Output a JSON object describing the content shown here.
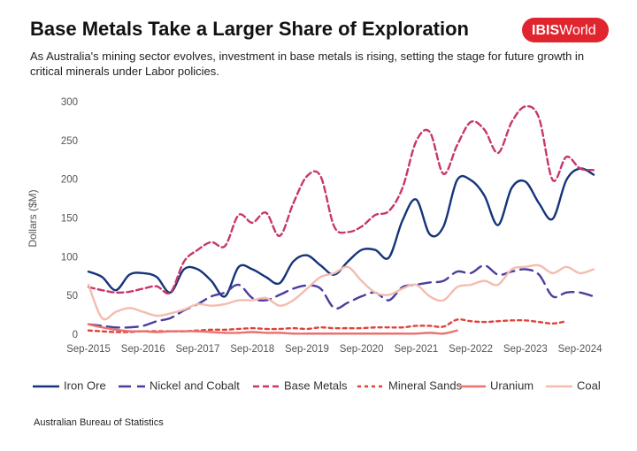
{
  "logo": {
    "bold": "IBIS",
    "regular": "World"
  },
  "chart_data": {
    "type": "line",
    "title": "Base Metals Take a Larger Share of Exploration",
    "subtitle": "As Australia's mining sector evolves, investment in base metals is rising, setting the stage for future growth in critical minerals under Labor policies.",
    "ylabel": "Dollars ($M)",
    "source": "Australian  Bureau of Statistics",
    "categories": [
      "Sep-2015",
      null,
      null,
      null,
      "Sep-2016",
      null,
      null,
      null,
      "Sep-2017",
      null,
      null,
      null,
      "Sep-2018",
      null,
      null,
      null,
      "Sep-2019",
      null,
      null,
      null,
      "Sep-2020",
      null,
      null,
      null,
      "Sep-2021",
      null,
      null,
      null,
      "Sep-2022",
      null,
      null,
      null,
      "Sep-2023",
      null,
      null,
      null,
      "Sep-2024",
      null
    ],
    "ylim": [
      0,
      300
    ],
    "yticks": [
      0,
      50,
      100,
      150,
      200,
      250,
      300
    ],
    "grid": false,
    "legend": "bottom",
    "series": [
      {
        "name": "Iron Ore",
        "color": "#15347a",
        "dash": "solid",
        "values": [
          82,
          75,
          58,
          78,
          80,
          75,
          55,
          85,
          85,
          70,
          50,
          88,
          85,
          75,
          67,
          95,
          103,
          90,
          78,
          95,
          110,
          110,
          100,
          148,
          175,
          130,
          140,
          200,
          200,
          180,
          142,
          190,
          198,
          170,
          150,
          200,
          215,
          207
        ]
      },
      {
        "name": "Nickel and Cobalt",
        "color": "#4a3d9e",
        "dash": "long",
        "values": [
          14,
          12,
          10,
          10,
          12,
          18,
          22,
          32,
          40,
          50,
          55,
          65,
          48,
          45,
          52,
          60,
          64,
          60,
          35,
          42,
          50,
          55,
          45,
          62,
          65,
          68,
          70,
          82,
          80,
          90,
          78,
          82,
          85,
          78,
          50,
          55,
          55,
          50
        ]
      },
      {
        "name": "Base Metals",
        "color": "#c8376a",
        "dash": "medium",
        "values": [
          62,
          58,
          55,
          56,
          60,
          63,
          55,
          95,
          110,
          120,
          115,
          155,
          145,
          158,
          128,
          170,
          205,
          205,
          140,
          133,
          140,
          155,
          160,
          190,
          250,
          262,
          208,
          245,
          275,
          265,
          235,
          275,
          295,
          280,
          200,
          230,
          215,
          213
        ]
      },
      {
        "name": "Mineral Sands",
        "color": "#e0423c",
        "dash": "short",
        "values": [
          6,
          5,
          4,
          4,
          5,
          5,
          5,
          5,
          6,
          7,
          7,
          8,
          9,
          8,
          8,
          9,
          8,
          10,
          9,
          9,
          9,
          10,
          10,
          10,
          12,
          12,
          11,
          20,
          18,
          17,
          18,
          19,
          19,
          17,
          15,
          18,
          null,
          null
        ]
      },
      {
        "name": "Uranium",
        "color": "#e8736e",
        "dash": "solid",
        "values": [
          14,
          10,
          7,
          5,
          5,
          4,
          5,
          5,
          5,
          4,
          3,
          3,
          4,
          3,
          3,
          2,
          2,
          2,
          2,
          2,
          2,
          2,
          2,
          2,
          2,
          3,
          2,
          6,
          null,
          null,
          null,
          null,
          null,
          null,
          null,
          null,
          null,
          null
        ]
      },
      {
        "name": "Coal",
        "color": "#f4bcae",
        "dash": "solid",
        "values": [
          65,
          22,
          30,
          35,
          30,
          25,
          28,
          33,
          40,
          38,
          40,
          45,
          45,
          48,
          38,
          45,
          60,
          75,
          80,
          88,
          70,
          55,
          52,
          60,
          65,
          50,
          45,
          62,
          65,
          70,
          65,
          85,
          88,
          90,
          80,
          88,
          80,
          85
        ]
      }
    ]
  }
}
